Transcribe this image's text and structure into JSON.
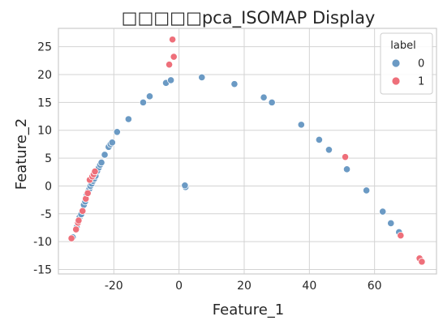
{
  "chart_data": {
    "type": "scatter",
    "title": "□□□□□pca_ISOMAP Display",
    "xlabel": "Feature_1",
    "ylabel": "Feature_2",
    "xlim": [
      -37,
      79
    ],
    "ylim": [
      -15.8,
      28.3
    ],
    "xticks": [
      -20,
      0,
      20,
      40,
      60
    ],
    "yticks": [
      -15,
      -10,
      -5,
      0,
      5,
      10,
      15,
      20,
      25
    ],
    "grid": true,
    "legend": {
      "title": "label",
      "placement": "top-right",
      "entries": [
        {
          "label": "0",
          "color": "#6b9ac4"
        },
        {
          "label": "1",
          "color": "#ee6f7a"
        }
      ]
    },
    "series": [
      {
        "name": "0",
        "color": "#6b9ac4",
        "points": [
          [
            -32.6,
            -9.2
          ],
          [
            -31.4,
            -7.4
          ],
          [
            -30.5,
            -5.6
          ],
          [
            -30.0,
            -5.1
          ],
          [
            -29.2,
            -3.4
          ],
          [
            -28.8,
            -2.8
          ],
          [
            -28.3,
            -1.6
          ],
          [
            -27.9,
            -1.0
          ],
          [
            -27.5,
            -0.5
          ],
          [
            -27.2,
            0.0
          ],
          [
            -26.8,
            0.4
          ],
          [
            -26.4,
            0.9
          ],
          [
            -26.0,
            1.3
          ],
          [
            -25.6,
            1.8
          ],
          [
            -25.1,
            2.7
          ],
          [
            -24.6,
            3.3
          ],
          [
            -24.2,
            3.8
          ],
          [
            -23.8,
            4.2
          ],
          [
            -22.8,
            5.6
          ],
          [
            -21.6,
            7.0
          ],
          [
            -21.0,
            7.5
          ],
          [
            -20.5,
            7.8
          ],
          [
            -19.0,
            9.7
          ],
          [
            -15.5,
            12.0
          ],
          [
            -11.0,
            15.0
          ],
          [
            -9.0,
            16.1
          ],
          [
            -4.0,
            18.5
          ],
          [
            -2.5,
            19.0
          ],
          [
            7.0,
            19.5
          ],
          [
            17.0,
            18.3
          ],
          [
            26.0,
            15.9
          ],
          [
            28.5,
            15.0
          ],
          [
            37.5,
            11.0
          ],
          [
            43.0,
            8.3
          ],
          [
            46.0,
            6.5
          ],
          [
            51.5,
            3.0
          ],
          [
            57.5,
            -0.8
          ],
          [
            62.5,
            -4.6
          ],
          [
            65.0,
            -6.7
          ],
          [
            67.5,
            -8.3
          ],
          [
            2.0,
            -0.2
          ],
          [
            1.8,
            0.1
          ]
        ]
      },
      {
        "name": "1",
        "color": "#ee6f7a",
        "points": [
          [
            -33.0,
            -9.4
          ],
          [
            -31.6,
            -7.8
          ],
          [
            -31.0,
            -6.6
          ],
          [
            -30.8,
            -6.2
          ],
          [
            -29.6,
            -4.5
          ],
          [
            -28.6,
            -2.3
          ],
          [
            -28.0,
            -1.3
          ],
          [
            -27.4,
            1.1
          ],
          [
            -26.6,
            1.7
          ],
          [
            -26.2,
            2.1
          ],
          [
            -25.8,
            2.6
          ],
          [
            -3.0,
            21.8
          ],
          [
            -2.0,
            26.3
          ],
          [
            -1.6,
            23.2
          ],
          [
            51.0,
            5.2
          ],
          [
            68.0,
            -8.9
          ],
          [
            73.8,
            -13.0
          ],
          [
            74.5,
            -13.6
          ]
        ]
      }
    ]
  }
}
